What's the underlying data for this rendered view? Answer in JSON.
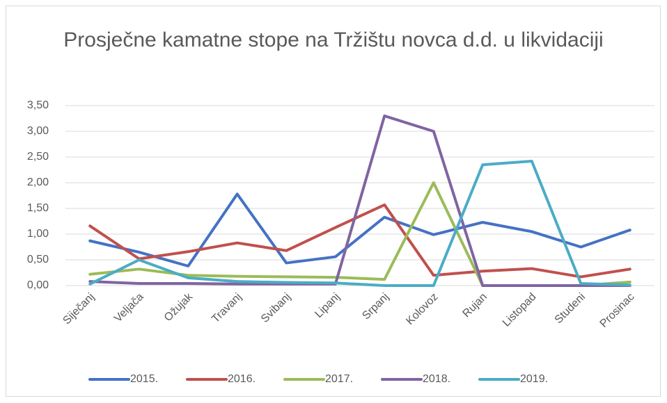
{
  "chart_data": {
    "type": "line",
    "title": "Prosječne kamatne stope na Tržištu novca d.d. u likvidaciji",
    "categories": [
      "Siječanj",
      "Veljača",
      "Ožujak",
      "Travanj",
      "Svibanj",
      "Lipanj",
      "Srpanj",
      "Kolovoz",
      "Rujan",
      "Listopad",
      "Studeni",
      "Prosinac"
    ],
    "series": [
      {
        "name": "2015.",
        "color": "#4472c4",
        "values": [
          0.87,
          0.65,
          0.38,
          1.78,
          0.44,
          0.56,
          1.33,
          0.99,
          1.23,
          1.05,
          0.75,
          1.08
        ]
      },
      {
        "name": "2016.",
        "color": "#c0504d",
        "values": [
          1.16,
          0.52,
          0.66,
          0.83,
          0.68,
          1.13,
          1.57,
          0.2,
          0.28,
          0.33,
          0.17,
          0.32
        ]
      },
      {
        "name": "2017.",
        "color": "#9bbb59",
        "values": [
          0.22,
          0.32,
          0.2,
          0.18,
          0.17,
          0.16,
          0.12,
          2.0,
          0.0,
          0.0,
          0.0,
          0.07
        ]
      },
      {
        "name": "2018.",
        "color": "#8064a2",
        "values": [
          0.08,
          0.04,
          0.04,
          0.03,
          0.03,
          0.03,
          3.3,
          3.0,
          0.0,
          0.0,
          0.0,
          0.0
        ]
      },
      {
        "name": "2019.",
        "color": "#4bacc6",
        "values": [
          0.03,
          0.5,
          0.15,
          0.08,
          0.06,
          0.05,
          0.0,
          0.0,
          2.35,
          2.42,
          0.04,
          0.01
        ]
      }
    ],
    "ylim": [
      0,
      3.5
    ],
    "yticks": [
      {
        "value": 0,
        "label": "0,00"
      },
      {
        "value": 0.5,
        "label": "0,50"
      },
      {
        "value": 1,
        "label": "1,00"
      },
      {
        "value": 1.5,
        "label": "1,50"
      },
      {
        "value": 2,
        "label": "2,00"
      },
      {
        "value": 2.5,
        "label": "2,50"
      },
      {
        "value": 3,
        "label": "3,00"
      },
      {
        "value": 3.5,
        "label": "3,50"
      }
    ],
    "grid": true,
    "legend": "bottom"
  }
}
